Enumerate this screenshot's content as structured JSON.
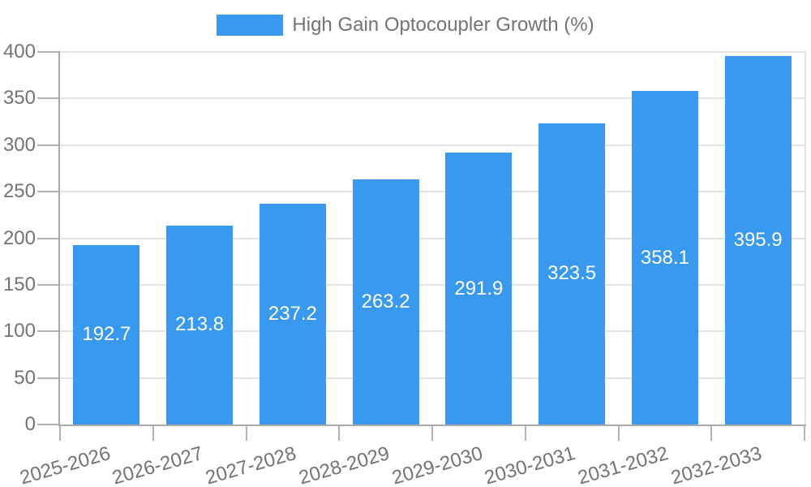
{
  "chart_data": {
    "type": "bar",
    "title": "",
    "xlabel": "",
    "ylabel": "",
    "legend": {
      "label": "High Gain Optocoupler Growth (%)",
      "position": "top"
    },
    "categories": [
      "2025-2026",
      "2026-2027",
      "2027-2028",
      "2028-2029",
      "2029-2030",
      "2030-2031",
      "2031-2032",
      "2032-2033"
    ],
    "series": [
      {
        "name": "High Gain Optocoupler Growth (%)",
        "values": [
          192.7,
          213.8,
          237.2,
          263.2,
          291.9,
          323.5,
          358.1,
          395.9
        ]
      }
    ],
    "value_labels_shown": true,
    "ylim": [
      0,
      400
    ],
    "yticks": [
      0,
      50,
      100,
      150,
      200,
      250,
      300,
      350,
      400
    ],
    "grid": true
  },
  "colors": {
    "bar": "#3999EE",
    "value_label": "#ffffff",
    "axis_text": "#737373",
    "axis_line": "#a9a9a9",
    "tick": "#b2b2b2",
    "gridline": "#e3e3e3",
    "background": "#ffffff"
  }
}
